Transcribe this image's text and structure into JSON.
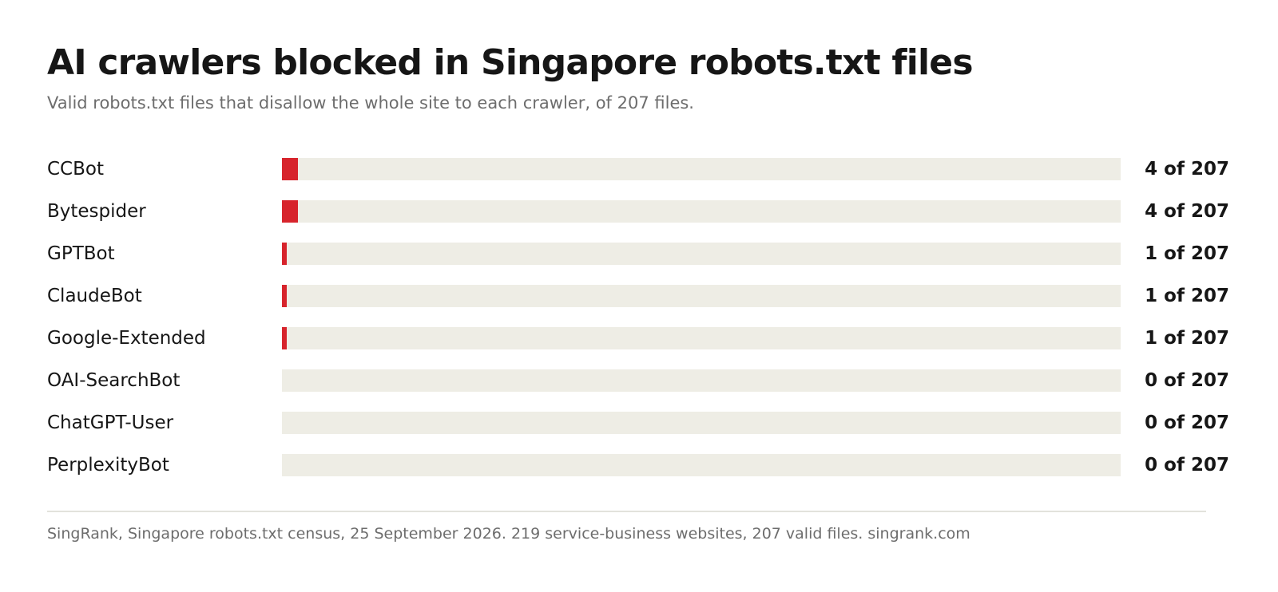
{
  "title": "AI crawlers blocked in Singapore robots.txt files",
  "subtitle": "Valid robots.txt files that disallow the whole site to each crawler, of 207 files.",
  "source": "SingRank, Singapore robots.txt census, 25 September 2026. 219 service-business websites, 207 valid files. singrank.com",
  "colors": {
    "fill": "#d7242c",
    "track": "#eeede5",
    "text": "#161616",
    "muted": "#6d6d6d"
  },
  "chart_data": {
    "type": "bar",
    "orientation": "horizontal",
    "title": "AI crawlers blocked in Singapore robots.txt files",
    "subtitle": "Valid robots.txt files that disallow the whole site to each crawler, of 207 files.",
    "total": 207,
    "xlim": [
      0,
      207
    ],
    "grid": false,
    "categories": [
      "CCBot",
      "Bytespider",
      "GPTBot",
      "ClaudeBot",
      "Google-Extended",
      "OAI-SearchBot",
      "ChatGPT-User",
      "PerplexityBot"
    ],
    "values": [
      4,
      4,
      1,
      1,
      1,
      0,
      0,
      0
    ],
    "value_labels": [
      "4 of 207",
      "4 of 207",
      "1 of 207",
      "1 of 207",
      "1 of 207",
      "0 of 207",
      "0 of 207",
      "0 of 207"
    ]
  }
}
